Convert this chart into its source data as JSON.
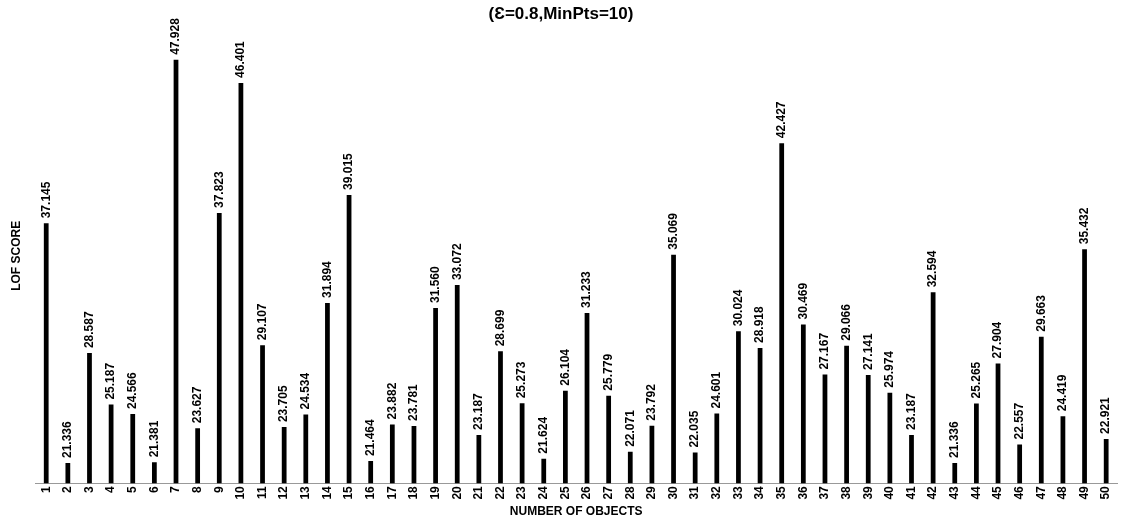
{
  "chart_data": {
    "type": "bar",
    "title": "(Ɛ=0.8,MinPts=10)",
    "xlabel": "NUMBER OF OBJECTS",
    "ylabel": "LOF SCORE",
    "categories": [
      "1",
      "2",
      "3",
      "4",
      "5",
      "6",
      "7",
      "8",
      "9",
      "10",
      "11",
      "12",
      "13",
      "14",
      "15",
      "16",
      "17",
      "18",
      "19",
      "20",
      "21",
      "22",
      "23",
      "24",
      "25",
      "26",
      "27",
      "28",
      "29",
      "30",
      "31",
      "32",
      "33",
      "34",
      "35",
      "36",
      "37",
      "38",
      "39",
      "40",
      "41",
      "42",
      "43",
      "44",
      "45",
      "46",
      "47",
      "48",
      "49",
      "50"
    ],
    "values": [
      37.145,
      21.336,
      28.587,
      25.187,
      24.566,
      21.381,
      47.928,
      23.627,
      37.823,
      46.401,
      29.107,
      23.705,
      24.534,
      31.894,
      39.015,
      21.464,
      23.882,
      23.781,
      31.56,
      33.072,
      23.187,
      28.699,
      25.273,
      21.624,
      26.104,
      31.233,
      25.779,
      22.071,
      23.792,
      35.069,
      22.035,
      24.601,
      30.024,
      28.918,
      42.427,
      30.469,
      27.167,
      29.066,
      27.141,
      25.974,
      23.187,
      32.594,
      21.336,
      25.265,
      27.904,
      22.557,
      29.663,
      24.419,
      35.432,
      22.921
    ],
    "value_labels": [
      "37.145",
      "21.336",
      "28.587",
      "25.187",
      "24.566",
      "21.381",
      "47.928",
      "23.627",
      "37.823",
      "46.401",
      "29.107",
      "23.705",
      "24.534",
      "31.894",
      "39.015",
      "21.464",
      "23.882",
      "23.781",
      "31.560",
      "33.072",
      "23.187",
      "28.699",
      "25.273",
      "21.624",
      "26.104",
      "31.233",
      "25.779",
      "22.071",
      "23.792",
      "35.069",
      "22.035",
      "24.601",
      "30.024",
      "28.918",
      "42.427",
      "30.469",
      "27.167",
      "29.066",
      "27.141",
      "25.974",
      "23.187",
      "32.594",
      "21.336",
      "25.265",
      "27.904",
      "22.557",
      "29.663",
      "24.419",
      "35.432",
      "22.921"
    ],
    "color": "#000000",
    "tick_labels": "x",
    "grid": false,
    "legend": false
  }
}
